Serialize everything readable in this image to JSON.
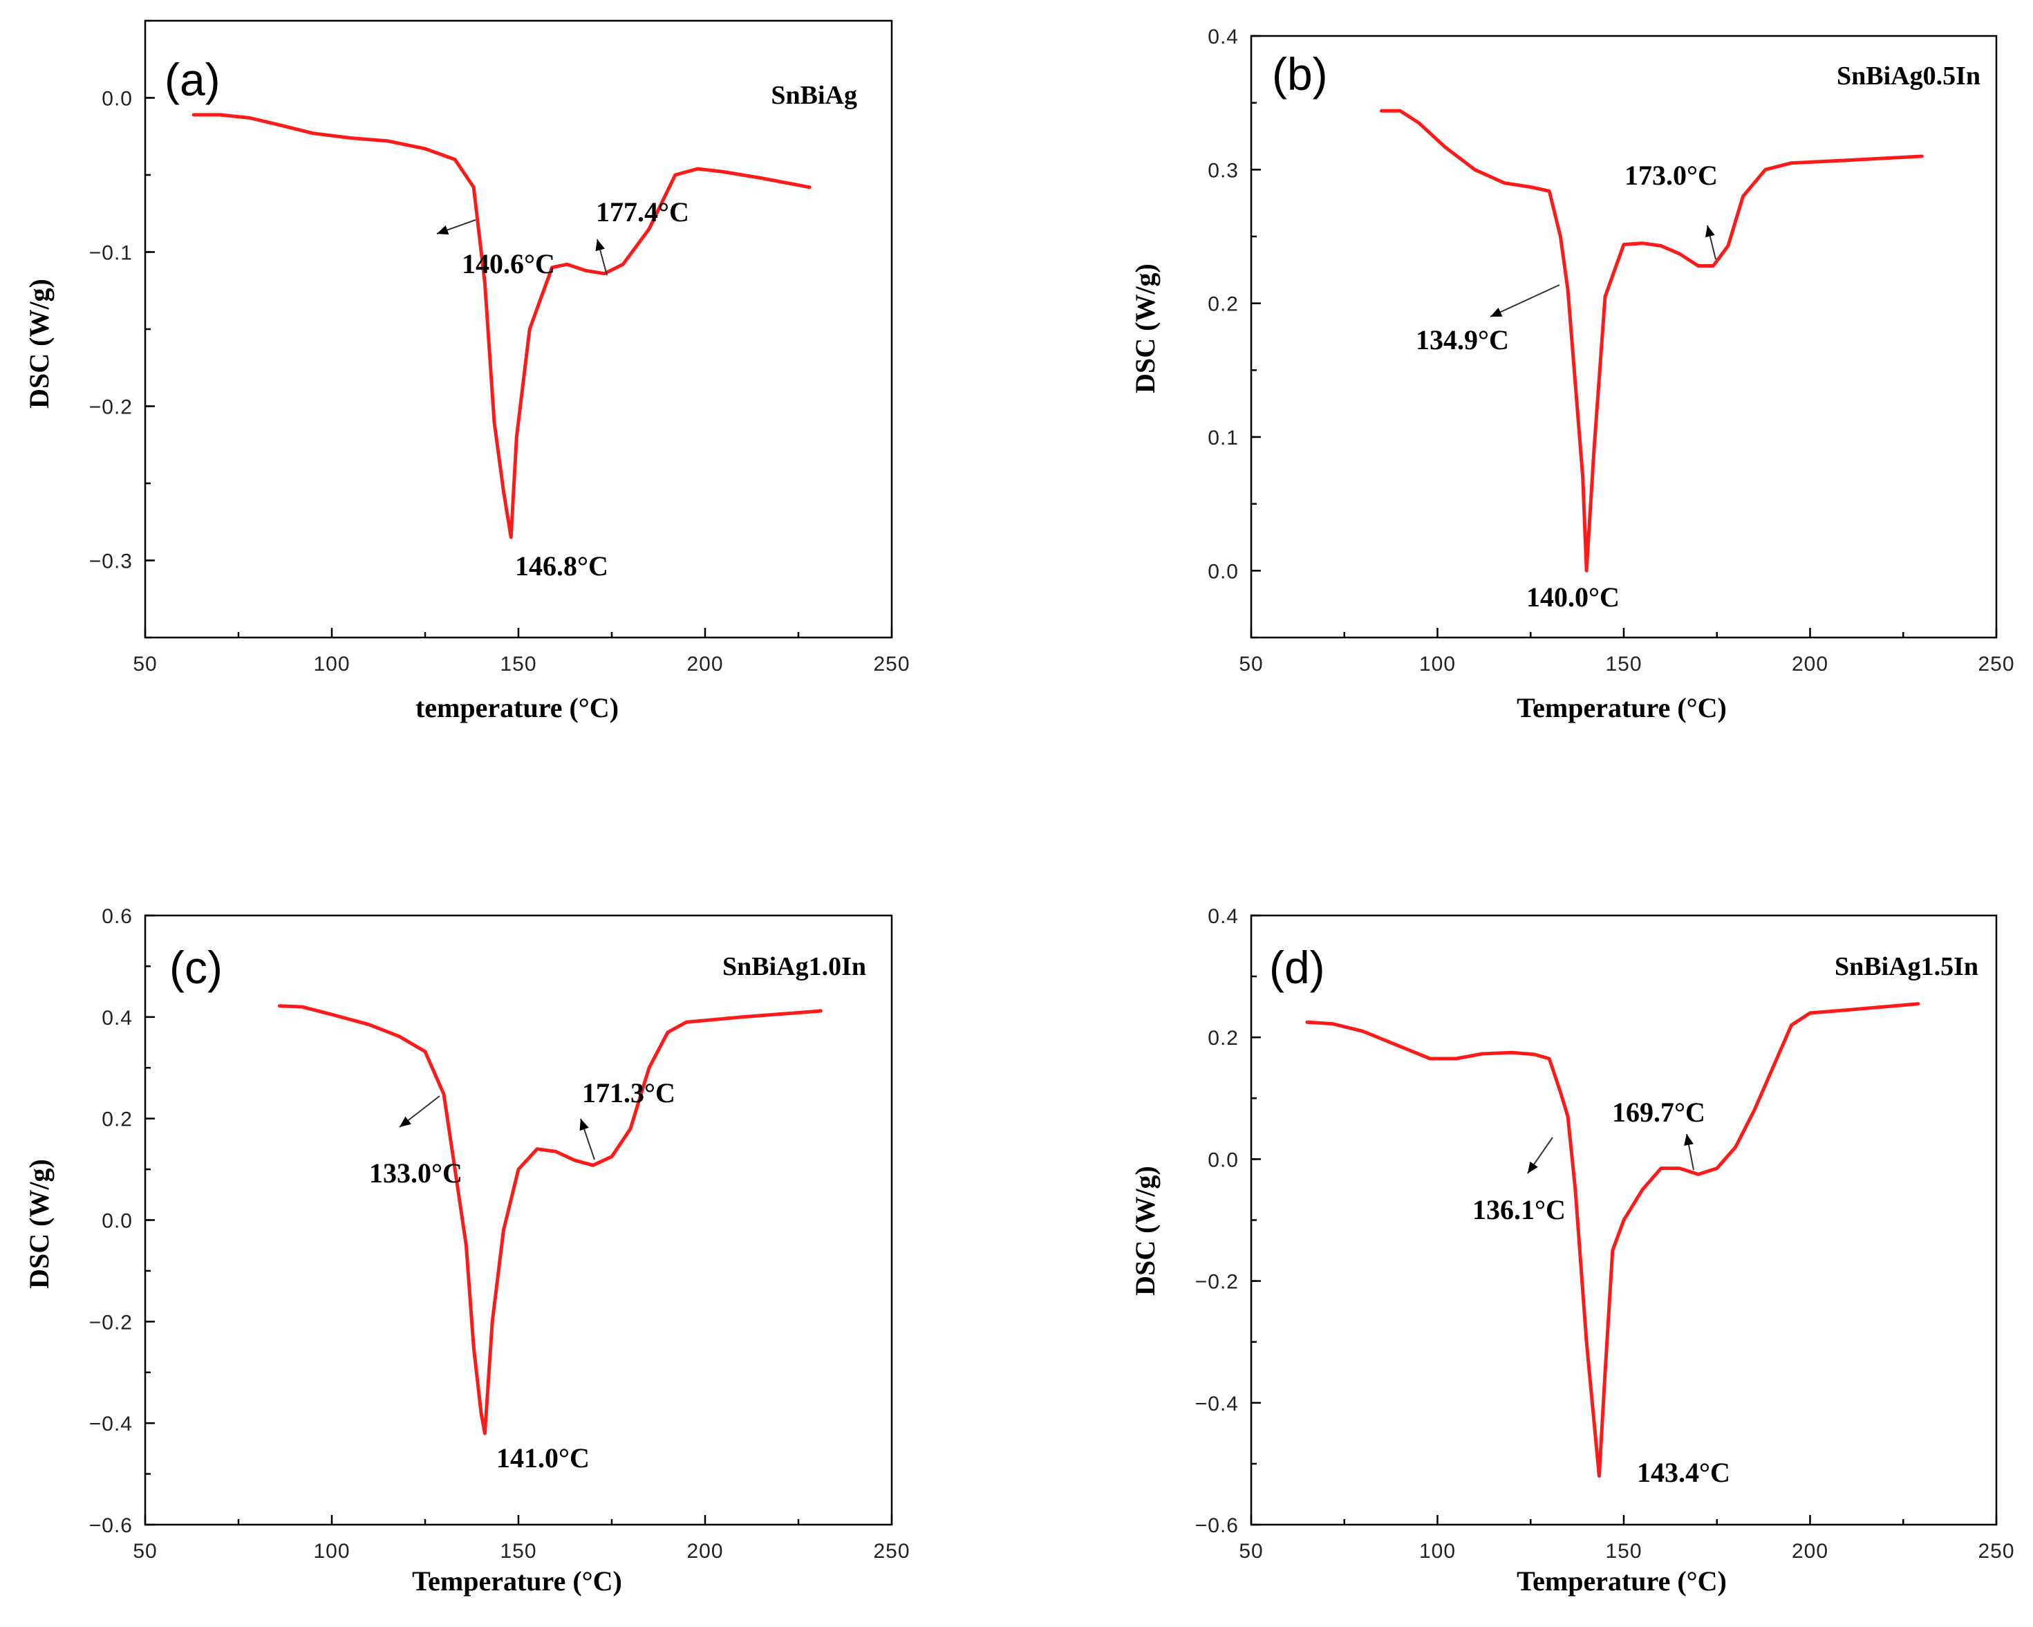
{
  "chart_data": [
    {
      "type": "line",
      "panel": "(a)",
      "series_name": "SnBiAg",
      "xlabel": "temperature (°C)",
      "ylabel": "DSC (W/g)",
      "xlim": [
        50,
        250
      ],
      "ylim": [
        -0.35,
        0.05
      ],
      "xticks": [
        50,
        100,
        150,
        200,
        250
      ],
      "xtick_labels": [
        "50",
        "100",
        "150",
        "200",
        "250"
      ],
      "yticks": [
        0.0,
        -0.1,
        -0.2,
        -0.3
      ],
      "ytick_labels": [
        "0.0",
        "−0.1",
        "−0.2",
        "−0.3"
      ],
      "color": "#ff1a1a",
      "x": [
        63,
        70,
        78,
        85,
        95,
        105,
        115,
        125,
        133,
        138,
        141,
        143.5,
        146,
        148,
        149.5,
        151,
        153,
        156,
        159,
        163,
        168,
        173,
        178,
        185,
        192,
        198,
        205,
        215,
        228
      ],
      "y": [
        -0.011,
        -0.011,
        -0.013,
        -0.017,
        -0.023,
        -0.026,
        -0.028,
        -0.033,
        -0.04,
        -0.058,
        -0.12,
        -0.21,
        -0.255,
        -0.285,
        -0.22,
        -0.19,
        -0.15,
        -0.13,
        -0.11,
        -0.108,
        -0.112,
        -0.114,
        -0.108,
        -0.085,
        -0.05,
        -0.046,
        -0.048,
        -0.052,
        -0.058
      ],
      "annotations": [
        {
          "text": "140.6°C",
          "x": 140.6,
          "y": -0.063
        },
        {
          "text": "146.8°C",
          "x": 146.8,
          "y": -0.285
        },
        {
          "text": "177.4°C",
          "x": 177.4,
          "y": -0.112
        }
      ]
    },
    {
      "type": "line",
      "panel": "(b)",
      "series_name": "SnBiAg0.5In",
      "xlabel": "Temperature (°C)",
      "ylabel": "DSC (W/g)",
      "xlim": [
        50,
        250
      ],
      "ylim": [
        -0.05,
        0.4
      ],
      "xticks": [
        50,
        100,
        150,
        200,
        250
      ],
      "xtick_labels": [
        "50",
        "100",
        "150",
        "200",
        "250"
      ],
      "yticks": [
        0.4,
        0.3,
        0.2,
        0.1,
        0.0
      ],
      "ytick_labels": [
        "0.4",
        "0.3",
        "0.2",
        "0.1",
        "0.0"
      ],
      "color": "#ff1a1a",
      "x": [
        85,
        90,
        95,
        102,
        110,
        118,
        125,
        130,
        133,
        135,
        137,
        139,
        140,
        142,
        145,
        150,
        155,
        160,
        165,
        170,
        174,
        178,
        182,
        188,
        195,
        210,
        230
      ],
      "y": [
        0.344,
        0.344,
        0.335,
        0.317,
        0.3,
        0.29,
        0.287,
        0.284,
        0.25,
        0.21,
        0.14,
        0.07,
        0.0,
        0.09,
        0.205,
        0.244,
        0.245,
        0.243,
        0.237,
        0.228,
        0.228,
        0.243,
        0.28,
        0.3,
        0.305,
        0.307,
        0.31
      ],
      "annotations": [
        {
          "text": "173.0°C",
          "x": 173.0,
          "y": 0.232
        },
        {
          "text": "134.9°C",
          "x": 134.9,
          "y": 0.22
        },
        {
          "text": "140.0°C",
          "x": 140.0,
          "y": 0.0
        }
      ]
    },
    {
      "type": "line",
      "panel": "(c)",
      "series_name": "SnBiAg1.0In",
      "xlabel": "Temperature (°C)",
      "ylabel": "DSC (W/g)",
      "xlim": [
        50,
        250
      ],
      "ylim": [
        -0.6,
        0.6
      ],
      "xticks": [
        50,
        100,
        150,
        200,
        250
      ],
      "xtick_labels": [
        "50",
        "100",
        "150",
        "200",
        "250"
      ],
      "yticks": [
        0.6,
        0.4,
        0.2,
        0.0,
        -0.2,
        -0.4,
        -0.6
      ],
      "ytick_labels": [
        "0.6",
        "0.4",
        "0.2",
        "0.0",
        "−0.2",
        "−0.4",
        "−0.6"
      ],
      "color": "#ff1a1a",
      "x": [
        86,
        92,
        100,
        110,
        118,
        125,
        130,
        133,
        136,
        138,
        140,
        141,
        143,
        146,
        150,
        155,
        160,
        165,
        170,
        175,
        180,
        185,
        190,
        195,
        210,
        231
      ],
      "y": [
        0.422,
        0.42,
        0.405,
        0.385,
        0.362,
        0.332,
        0.248,
        0.1,
        -0.05,
        -0.25,
        -0.38,
        -0.42,
        -0.2,
        -0.02,
        0.1,
        0.14,
        0.135,
        0.118,
        0.108,
        0.125,
        0.18,
        0.3,
        0.37,
        0.39,
        0.4,
        0.412
      ],
      "annotations": [
        {
          "text": "133.0°C",
          "x": 133.0,
          "y": 0.2
        },
        {
          "text": "171.3°C",
          "x": 171.3,
          "y": 0.108
        },
        {
          "text": "141.0°C",
          "x": 141.0,
          "y": -0.42
        }
      ]
    },
    {
      "type": "line",
      "panel": "(d)",
      "series_name": "SnBiAg1.5In",
      "xlabel": "Temperature (°C)",
      "ylabel": "DSC (W/g)",
      "xlim": [
        50,
        250
      ],
      "ylim": [
        -0.6,
        0.4
      ],
      "xticks": [
        50,
        100,
        150,
        200,
        250
      ],
      "xtick_labels": [
        "50",
        "100",
        "150",
        "200",
        "250"
      ],
      "yticks": [
        0.4,
        0.2,
        0.0,
        -0.2,
        -0.4,
        -0.6
      ],
      "ytick_labels": [
        "0.4",
        "0.2",
        "0.0",
        "−0.2",
        "−0.4",
        "−0.6"
      ],
      "color": "#ff1a1a",
      "x": [
        65,
        72,
        80,
        90,
        98,
        105,
        112,
        120,
        126,
        130,
        133,
        135,
        137,
        140,
        143.4,
        145,
        147,
        150,
        155,
        160,
        165,
        170,
        175,
        180,
        185,
        190,
        195,
        200,
        210,
        229
      ],
      "y": [
        0.225,
        0.222,
        0.21,
        0.185,
        0.165,
        0.165,
        0.173,
        0.175,
        0.172,
        0.165,
        0.11,
        0.07,
        -0.05,
        -0.3,
        -0.52,
        -0.35,
        -0.15,
        -0.1,
        -0.05,
        -0.015,
        -0.015,
        -0.025,
        -0.015,
        0.02,
        0.08,
        0.15,
        0.22,
        0.24,
        0.245,
        0.255
      ],
      "annotations": [
        {
          "text": "136.1°C",
          "x": 136.1,
          "y": 0.05
        },
        {
          "text": "169.7°C",
          "x": 169.7,
          "y": -0.02
        },
        {
          "text": "143.4°C",
          "x": 143.4,
          "y": -0.52
        }
      ]
    }
  ]
}
